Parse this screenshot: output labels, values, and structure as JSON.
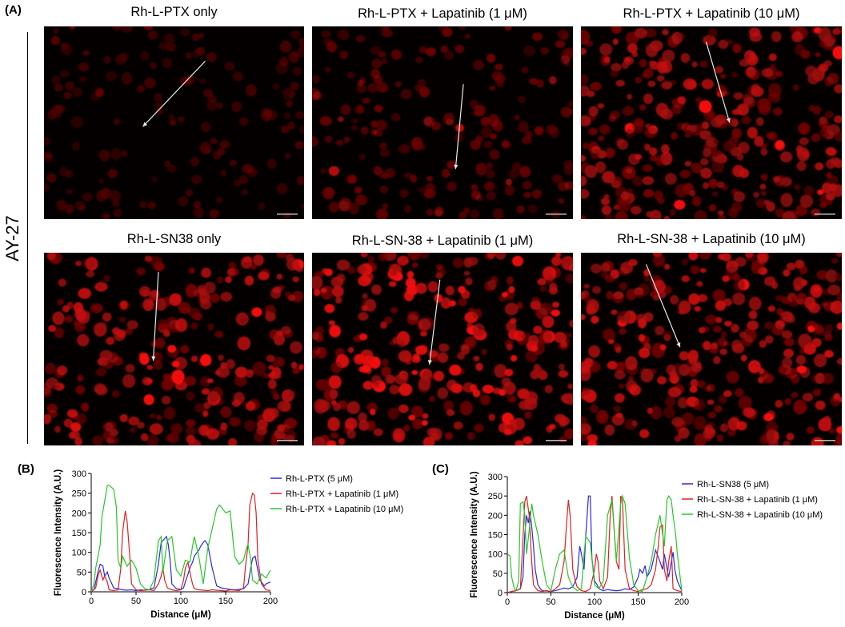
{
  "panels": {
    "a": "(A)",
    "b": "(B)",
    "c": "(C)"
  },
  "row_label": "AY-27",
  "images": [
    {
      "title": "Rh-L-PTX only",
      "density": 0.3,
      "bright": 0.25,
      "cellCount": 150,
      "arrow": [
        0.62,
        0.18,
        0.38,
        0.52
      ]
    },
    {
      "title": "Rh-L-PTX + Lapatinib (1 μM)",
      "density": 0.45,
      "bright": 0.4,
      "cellCount": 190,
      "arrow": [
        0.58,
        0.3,
        0.55,
        0.74
      ]
    },
    {
      "title": "Rh-L-PTX + Lapatinib (10 μM)",
      "density": 0.8,
      "bright": 0.65,
      "cellCount": 330,
      "arrow": [
        0.48,
        0.08,
        0.57,
        0.5
      ]
    },
    {
      "title": "Rh-L-SN38 only",
      "density": 0.75,
      "bright": 0.7,
      "cellCount": 270,
      "arrow": [
        0.44,
        0.1,
        0.42,
        0.56
      ]
    },
    {
      "title": "Rh-L-SN-38 + Lapatinib (1 μM)",
      "density": 0.85,
      "bright": 0.85,
      "cellCount": 300,
      "arrow": [
        0.49,
        0.14,
        0.45,
        0.58
      ]
    },
    {
      "title": "Rh-L-SN-38 + Lapatinib (10 μM)",
      "density": 0.8,
      "bright": 0.75,
      "cellCount": 320,
      "arrow": [
        0.25,
        0.06,
        0.38,
        0.49
      ]
    }
  ],
  "chart_data": [
    {
      "type": "line",
      "xlabel": "Distance (μM)",
      "ylabel": "Fluorescence Intensity (A.U.)",
      "xlim": [
        0,
        200
      ],
      "ylim": [
        0,
        300
      ],
      "xticks": [
        0,
        50,
        100,
        150,
        200
      ],
      "yticks": [
        0,
        50,
        100,
        150,
        200,
        250,
        300
      ],
      "legend_position": "top-right",
      "series": [
        {
          "name": "Rh-L-PTX (5 μM)",
          "color": "#2a2ae0",
          "x": [
            0,
            3,
            5,
            8,
            10,
            13,
            15,
            18,
            20,
            23,
            25,
            30,
            35,
            40,
            45,
            50,
            55,
            60,
            65,
            70,
            75,
            78,
            80,
            82,
            84,
            86,
            88,
            90,
            95,
            100,
            103,
            105,
            108,
            110,
            113,
            115,
            118,
            120,
            122,
            125,
            127,
            130,
            135,
            140,
            145,
            150,
            155,
            160,
            165,
            170,
            175,
            178,
            180,
            183,
            185,
            188,
            190,
            193,
            195,
            200
          ],
          "y": [
            0,
            5,
            25,
            55,
            70,
            65,
            40,
            50,
            35,
            20,
            10,
            8,
            5,
            4,
            5,
            3,
            5,
            4,
            6,
            10,
            70,
            125,
            130,
            135,
            140,
            120,
            80,
            20,
            8,
            6,
            10,
            25,
            45,
            60,
            75,
            90,
            100,
            105,
            115,
            125,
            130,
            120,
            60,
            15,
            10,
            8,
            6,
            5,
            6,
            8,
            20,
            60,
            85,
            90,
            65,
            30,
            25,
            15,
            20,
            25
          ]
        },
        {
          "name": "Rh-L-PTX + Lapatinib (1 μM)",
          "color": "#e02020",
          "x": [
            0,
            5,
            8,
            10,
            13,
            15,
            18,
            20,
            25,
            30,
            33,
            35,
            38,
            40,
            43,
            45,
            50,
            55,
            60,
            65,
            70,
            75,
            78,
            80,
            82,
            85,
            90,
            95,
            100,
            103,
            105,
            108,
            110,
            113,
            115,
            120,
            125,
            130,
            135,
            140,
            145,
            150,
            155,
            160,
            165,
            170,
            172,
            175,
            177,
            180,
            182,
            184,
            186,
            190,
            195,
            200
          ],
          "y": [
            0,
            10,
            45,
            55,
            30,
            40,
            25,
            5,
            3,
            5,
            60,
            150,
            205,
            180,
            90,
            20,
            5,
            3,
            4,
            5,
            3,
            20,
            40,
            60,
            30,
            10,
            5,
            3,
            5,
            30,
            60,
            75,
            50,
            20,
            8,
            5,
            4,
            3,
            5,
            4,
            3,
            2,
            5,
            4,
            3,
            10,
            60,
            120,
            220,
            250,
            245,
            200,
            80,
            20,
            5,
            3
          ]
        },
        {
          "name": "Rh-L-PTX + Lapatinib (10 μM)",
          "color": "#28c828",
          "x": [
            0,
            3,
            5,
            8,
            10,
            12,
            15,
            18,
            20,
            25,
            28,
            30,
            33,
            35,
            40,
            45,
            50,
            55,
            60,
            65,
            70,
            75,
            78,
            80,
            85,
            90,
            95,
            100,
            105,
            110,
            115,
            120,
            125,
            130,
            135,
            140,
            143,
            145,
            150,
            155,
            160,
            165,
            170,
            173,
            175,
            178,
            180,
            185,
            190,
            195,
            200
          ],
          "y": [
            0,
            20,
            60,
            95,
            120,
            190,
            230,
            270,
            270,
            260,
            215,
            80,
            60,
            90,
            65,
            80,
            60,
            20,
            8,
            5,
            30,
            130,
            140,
            50,
            130,
            140,
            55,
            40,
            80,
            75,
            140,
            90,
            20,
            110,
            160,
            210,
            220,
            215,
            200,
            205,
            90,
            70,
            80,
            110,
            120,
            80,
            30,
            20,
            45,
            35,
            55
          ]
        }
      ]
    },
    {
      "type": "line",
      "xlabel": "Distance (μM)",
      "ylabel": "Fluorescence Intensity (A.U.)",
      "xlim": [
        0,
        200
      ],
      "ylim": [
        0,
        300
      ],
      "xticks": [
        0,
        50,
        100,
        150,
        200
      ],
      "yticks": [
        0,
        50,
        100,
        150,
        200,
        250,
        300
      ],
      "legend_position": "top-right",
      "series": [
        {
          "name": "Rh-L-SN38 (5 μM)",
          "color": "#2a2ae0",
          "x": [
            0,
            5,
            10,
            15,
            18,
            20,
            22,
            24,
            26,
            28,
            30,
            32,
            35,
            38,
            40,
            45,
            50,
            55,
            60,
            65,
            70,
            75,
            80,
            83,
            85,
            88,
            90,
            93,
            95,
            97,
            100,
            103,
            105,
            110,
            115,
            120,
            125,
            130,
            135,
            140,
            145,
            150,
            152,
            155,
            158,
            160,
            165,
            170,
            175,
            178,
            180,
            185,
            190,
            192,
            195,
            200
          ],
          "y": [
            0,
            3,
            5,
            10,
            40,
            150,
            200,
            180,
            210,
            170,
            120,
            60,
            20,
            10,
            5,
            4,
            3,
            5,
            8,
            12,
            10,
            15,
            40,
            120,
            100,
            60,
            150,
            250,
            250,
            90,
            30,
            20,
            10,
            5,
            8,
            6,
            5,
            6,
            10,
            8,
            15,
            40,
            60,
            50,
            70,
            40,
            60,
            110,
            80,
            60,
            100,
            40,
            105,
            60,
            30,
            5
          ]
        },
        {
          "name": "Rh-L-SN-38 + Lapatinib (1 μM)",
          "color": "#e02020",
          "x": [
            0,
            5,
            10,
            15,
            18,
            20,
            22,
            25,
            28,
            30,
            35,
            40,
            45,
            50,
            55,
            60,
            65,
            68,
            70,
            72,
            75,
            78,
            80,
            85,
            90,
            95,
            100,
            102,
            104,
            106,
            110,
            115,
            118,
            120,
            122,
            125,
            128,
            130,
            132,
            135,
            140,
            145,
            150,
            155,
            160,
            165,
            170,
            173,
            175,
            178,
            180,
            183,
            185,
            188,
            190,
            195,
            200
          ],
          "y": [
            0,
            3,
            5,
            10,
            140,
            235,
            250,
            200,
            80,
            20,
            5,
            3,
            5,
            3,
            10,
            20,
            80,
            180,
            240,
            200,
            60,
            30,
            15,
            5,
            3,
            10,
            60,
            100,
            80,
            30,
            10,
            40,
            200,
            250,
            180,
            80,
            60,
            250,
            240,
            60,
            10,
            5,
            3,
            8,
            10,
            20,
            60,
            120,
            170,
            175,
            60,
            30,
            80,
            120,
            10,
            5,
            3
          ]
        },
        {
          "name": "Rh-L-SN-38 + Lapatinib (10 μM)",
          "color": "#28c828",
          "x": [
            0,
            3,
            5,
            8,
            10,
            13,
            15,
            18,
            20,
            22,
            25,
            28,
            30,
            35,
            40,
            45,
            50,
            55,
            60,
            65,
            70,
            75,
            80,
            85,
            88,
            90,
            95,
            100,
            105,
            110,
            115,
            120,
            125,
            130,
            132,
            135,
            140,
            145,
            150,
            155,
            160,
            165,
            170,
            175,
            180,
            183,
            185,
            188,
            190,
            193,
            195,
            200
          ],
          "y": [
            100,
            95,
            40,
            10,
            5,
            30,
            230,
            235,
            200,
            100,
            160,
            230,
            200,
            150,
            80,
            20,
            5,
            60,
            100,
            110,
            40,
            15,
            5,
            10,
            100,
            145,
            130,
            20,
            10,
            30,
            200,
            240,
            80,
            230,
            250,
            230,
            90,
            20,
            5,
            3,
            40,
            80,
            150,
            200,
            120,
            240,
            250,
            240,
            200,
            150,
            100,
            5
          ]
        }
      ]
    }
  ]
}
